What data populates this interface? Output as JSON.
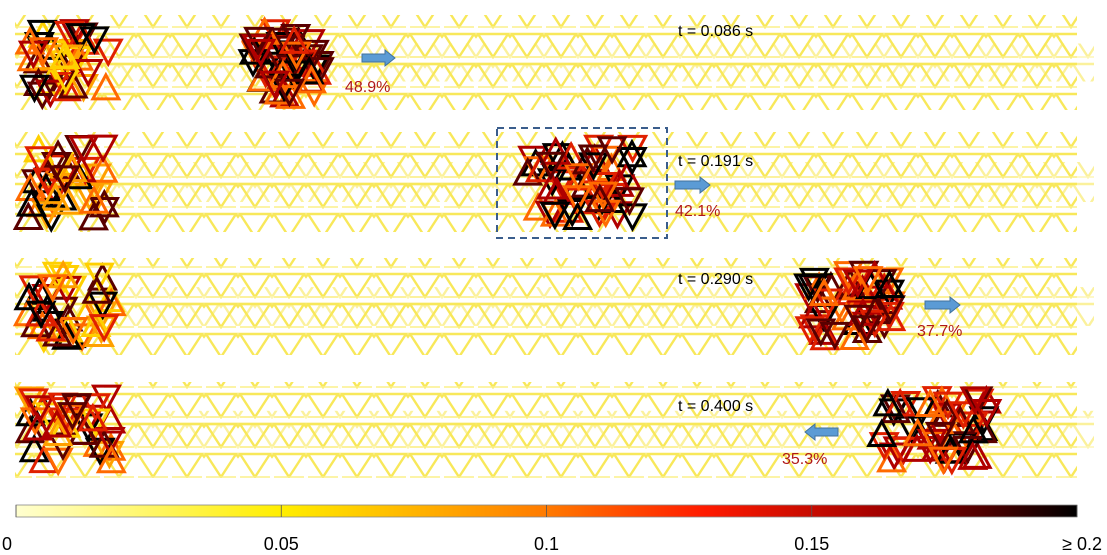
{
  "panels": [
    {
      "time": "t = 0.086 s",
      "percent": "48.9%"
    },
    {
      "time": "t = 0.191 s",
      "percent": "42.1%"
    },
    {
      "time": "t = 0.290 s",
      "percent": "37.7%"
    },
    {
      "time": "t = 0.400 s",
      "percent": "35.3%"
    }
  ],
  "colorbar": {
    "range": [
      0,
      0.2
    ],
    "ticks": [
      0,
      0.05,
      0.1,
      0.15,
      {
        "value": 0.2,
        "label": "≥ 0.2"
      }
    ]
  }
}
